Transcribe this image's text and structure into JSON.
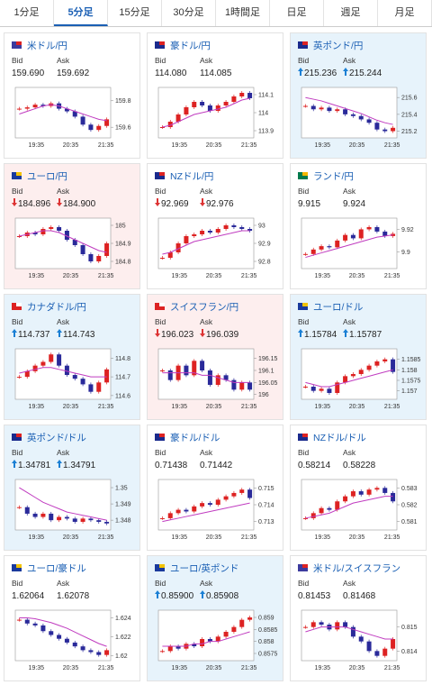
{
  "tabs": [
    "1分足",
    "5分足",
    "15分足",
    "30分足",
    "1時間足",
    "日足",
    "週足",
    "月足"
  ],
  "active_tab": 1,
  "labels": {
    "bid": "Bid",
    "ask": "Ask"
  },
  "time_ticks": [
    "19:35",
    "20:35",
    "21:35"
  ],
  "pairs": [
    {
      "name": "米ドル/円",
      "bid": "159.690",
      "ask": "159.692",
      "trend": null,
      "bg": "#ffffff",
      "flag": [
        "#3c3b9e",
        "#d22"
      ],
      "ylim": [
        159.52,
        159.9
      ],
      "yticks": [
        159.8,
        159.6
      ],
      "close": [
        159.74,
        159.75,
        159.77,
        159.76,
        159.78,
        159.74,
        159.72,
        159.68,
        159.62,
        159.58,
        159.61,
        159.66
      ],
      "ma": [
        159.7,
        159.72,
        159.74,
        159.76,
        159.77,
        159.76,
        159.74,
        159.72,
        159.7,
        159.68,
        159.66,
        159.65
      ]
    },
    {
      "name": "豪ドル/円",
      "bid": "114.080",
      "ask": "114.085",
      "trend": null,
      "bg": "#ffffff",
      "flag": [
        "#1a2a8c",
        "#d22"
      ],
      "ylim": [
        113.86,
        114.14
      ],
      "yticks": [
        114.1,
        114,
        113.9
      ],
      "close": [
        113.92,
        113.95,
        113.99,
        114.03,
        114.06,
        114.04,
        114.01,
        114.04,
        114.06,
        114.09,
        114.11,
        114.08
      ],
      "ma": [
        113.92,
        113.93,
        113.95,
        113.97,
        113.99,
        114.0,
        114.01,
        114.02,
        114.03,
        114.05,
        114.07,
        114.08
      ]
    },
    {
      "name": "英ポンド/円",
      "bid": "215.236",
      "ask": "215.244",
      "trend": "up",
      "bg": "#e7f3fb",
      "flag": [
        "#1a2a8c",
        "#d22"
      ],
      "ylim": [
        215.12,
        215.72
      ],
      "yticks": [
        215.6,
        215.4,
        215.2
      ],
      "close": [
        215.5,
        215.46,
        215.48,
        215.44,
        215.46,
        215.4,
        215.38,
        215.34,
        215.3,
        215.22,
        215.2,
        215.24
      ],
      "ma": [
        215.6,
        215.58,
        215.56,
        215.53,
        215.5,
        215.47,
        215.44,
        215.41,
        215.37,
        215.33,
        215.3,
        215.28
      ]
    },
    {
      "name": "ユーロ/円",
      "bid": "184.896",
      "ask": "184.900",
      "trend": "down",
      "bg": "#fdeeee",
      "flag": [
        "#1a3a9c",
        "#f2c200"
      ],
      "ylim": [
        184.76,
        185.04
      ],
      "yticks": [
        185,
        184.9,
        184.8
      ],
      "close": [
        184.94,
        184.96,
        184.95,
        184.98,
        184.99,
        184.97,
        184.92,
        184.89,
        184.84,
        184.8,
        184.83,
        184.9
      ],
      "ma": [
        184.94,
        184.95,
        184.96,
        184.97,
        184.97,
        184.96,
        184.94,
        184.92,
        184.9,
        184.88,
        184.86,
        184.85
      ]
    },
    {
      "name": "NZドル/円",
      "bid": "92.969",
      "ask": "92.976",
      "trend": "down",
      "bg": "#ffffff",
      "flag": [
        "#1a2a8c",
        "#d22"
      ],
      "ylim": [
        92.76,
        93.04
      ],
      "yticks": [
        93,
        92.9,
        92.8
      ],
      "close": [
        92.82,
        92.85,
        92.9,
        92.94,
        92.95,
        92.97,
        92.96,
        92.98,
        93.0,
        92.99,
        92.98,
        92.97
      ],
      "ma": [
        92.84,
        92.85,
        92.87,
        92.89,
        92.91,
        92.92,
        92.93,
        92.94,
        92.95,
        92.96,
        92.97,
        92.97
      ]
    },
    {
      "name": "ランド/円",
      "bid": "9.915",
      "ask": "9.924",
      "trend": null,
      "bg": "#ffffff",
      "flag": [
        "#007a4d",
        "#f2b600"
      ],
      "ylim": [
        9.885,
        9.93
      ],
      "yticks": [
        9.92,
        9.9
      ],
      "close": [
        9.898,
        9.902,
        9.905,
        9.904,
        9.91,
        9.915,
        9.912,
        9.92,
        9.922,
        9.918,
        9.914,
        9.916
      ],
      "ma": [
        9.895,
        9.897,
        9.899,
        9.901,
        9.903,
        9.905,
        9.907,
        9.909,
        9.911,
        9.913,
        9.914,
        9.915
      ]
    },
    {
      "name": "カナダドル/円",
      "bid": "114.737",
      "ask": "114.743",
      "trend": "up",
      "bg": "#e7f3fb",
      "flag": [
        "#d22",
        "#ffffff"
      ],
      "ylim": [
        114.58,
        114.85
      ],
      "yticks": [
        114.8,
        114.7,
        114.6
      ],
      "close": [
        114.7,
        114.73,
        114.76,
        114.78,
        114.82,
        114.76,
        114.71,
        114.69,
        114.66,
        114.62,
        114.67,
        114.74
      ],
      "ma": [
        114.72,
        114.73,
        114.74,
        114.75,
        114.75,
        114.74,
        114.73,
        114.72,
        114.71,
        114.7,
        114.7,
        114.7
      ]
    },
    {
      "name": "スイスフラン/円",
      "bid": "196.023",
      "ask": "196.039",
      "trend": "down",
      "bg": "#fdeeee",
      "flag": [
        "#d22",
        "#ffffff"
      ],
      "ylim": [
        195.98,
        196.19
      ],
      "yticks": [
        196.15,
        196.1,
        196.05,
        196
      ],
      "close": [
        196.1,
        196.06,
        196.12,
        196.08,
        196.14,
        196.1,
        196.04,
        196.08,
        196.06,
        196.02,
        196.05,
        196.02
      ],
      "ma": [
        196.09,
        196.09,
        196.09,
        196.09,
        196.09,
        196.08,
        196.08,
        196.07,
        196.06,
        196.05,
        196.05,
        196.05
      ]
    },
    {
      "name": "ユーロ/ドル",
      "bid": "1.15784",
      "ask": "1.15787",
      "trend": "up",
      "bg": "#e7f3fb",
      "flag": [
        "#1a3a9c",
        "#f2c200"
      ],
      "ylim": [
        1.1566,
        1.159
      ],
      "yticks": [
        1.1585,
        1.158,
        1.1575,
        1.157
      ],
      "close": [
        1.1572,
        1.157,
        1.1571,
        1.1569,
        1.1574,
        1.1577,
        1.1578,
        1.158,
        1.1582,
        1.1584,
        1.1585,
        1.1579
      ],
      "ma": [
        1.1574,
        1.1573,
        1.1572,
        1.1572,
        1.1573,
        1.1574,
        1.1575,
        1.1576,
        1.1577,
        1.1578,
        1.1579,
        1.158
      ]
    },
    {
      "name": "英ポンド/ドル",
      "bid": "1.34781",
      "ask": "1.34791",
      "trend": "up",
      "bg": "#e7f3fb",
      "flag": [
        "#1a2a8c",
        "#d22"
      ],
      "ylim": [
        1.3474,
        1.3505
      ],
      "yticks": [
        1.35,
        1.349,
        1.348
      ],
      "close": [
        1.3488,
        1.3484,
        1.3482,
        1.3484,
        1.348,
        1.3482,
        1.3481,
        1.3479,
        1.3481,
        1.348,
        1.3479,
        1.3478
      ],
      "ma": [
        1.35,
        1.3497,
        1.3494,
        1.3491,
        1.3489,
        1.3487,
        1.3485,
        1.3484,
        1.3483,
        1.3482,
        1.3481,
        1.348
      ]
    },
    {
      "name": "豪ドル/ドル",
      "bid": "0.71438",
      "ask": "0.71442",
      "trend": null,
      "bg": "#ffffff",
      "flag": [
        "#1a2a8c",
        "#d22"
      ],
      "ylim": [
        0.7125,
        0.7155
      ],
      "yticks": [
        0.715,
        0.714,
        0.713
      ],
      "close": [
        0.7132,
        0.7135,
        0.7137,
        0.7136,
        0.7139,
        0.7141,
        0.714,
        0.7143,
        0.7145,
        0.7147,
        0.7149,
        0.7144
      ],
      "ma": [
        0.713,
        0.7131,
        0.7132,
        0.7133,
        0.7134,
        0.7135,
        0.7136,
        0.7137,
        0.7138,
        0.7139,
        0.714,
        0.7141
      ]
    },
    {
      "name": "NZドル/ドル",
      "bid": "0.58214",
      "ask": "0.58228",
      "trend": null,
      "bg": "#ffffff",
      "flag": [
        "#1a2a8c",
        "#d22"
      ],
      "ylim": [
        0.5805,
        0.5835
      ],
      "yticks": [
        0.583,
        0.582,
        0.581
      ],
      "close": [
        0.5812,
        0.5815,
        0.5818,
        0.5817,
        0.5822,
        0.5825,
        0.5828,
        0.5826,
        0.5829,
        0.583,
        0.5827,
        0.5822
      ],
      "ma": [
        0.5812,
        0.5813,
        0.5814,
        0.5815,
        0.5817,
        0.5819,
        0.5821,
        0.5822,
        0.5823,
        0.5824,
        0.5825,
        0.5825
      ]
    },
    {
      "name": "ユーロ/豪ドル",
      "bid": "1.62064",
      "ask": "1.62078",
      "trend": null,
      "bg": "#ffffff",
      "flag": [
        "#1a3a9c",
        "#f2c200"
      ],
      "ylim": [
        1.6195,
        1.6248
      ],
      "yticks": [
        1.624,
        1.622,
        1.62
      ],
      "close": [
        1.6238,
        1.6234,
        1.6232,
        1.6226,
        1.6222,
        1.6218,
        1.6214,
        1.621,
        1.6206,
        1.6204,
        1.6201,
        1.6206
      ],
      "ma": [
        1.624,
        1.624,
        1.6239,
        1.6237,
        1.6235,
        1.6232,
        1.6229,
        1.6225,
        1.6221,
        1.6217,
        1.6213,
        1.621
      ]
    },
    {
      "name": "ユーロ/英ポンド",
      "bid": "0.85900",
      "ask": "0.85908",
      "trend": "up",
      "bg": "#e7f3fb",
      "flag": [
        "#1a3a9c",
        "#f2c200"
      ],
      "ylim": [
        0.8572,
        0.8593
      ],
      "yticks": [
        0.859,
        0.8585,
        0.858,
        0.8575
      ],
      "close": [
        0.8576,
        0.8578,
        0.8577,
        0.8579,
        0.8578,
        0.8581,
        0.858,
        0.8582,
        0.8584,
        0.8586,
        0.8589,
        0.859
      ],
      "ma": [
        0.8578,
        0.8578,
        0.8578,
        0.8578,
        0.8579,
        0.8579,
        0.858,
        0.858,
        0.8581,
        0.8582,
        0.8583,
        0.8584
      ]
    },
    {
      "name": "米ドル/スイスフラン",
      "bid": "0.81453",
      "ask": "0.81468",
      "trend": null,
      "bg": "#ffffff",
      "flag": [
        "#3c3b9e",
        "#d22"
      ],
      "ylim": [
        0.8136,
        0.8157
      ],
      "yticks": [
        0.815,
        0.814
      ],
      "close": [
        0.815,
        0.8152,
        0.8151,
        0.8149,
        0.8152,
        0.815,
        0.8146,
        0.8144,
        0.814,
        0.8138,
        0.8141,
        0.8145
      ],
      "ma": [
        0.8148,
        0.8149,
        0.815,
        0.815,
        0.815,
        0.815,
        0.8149,
        0.8148,
        0.8147,
        0.8146,
        0.8145,
        0.8145
      ]
    }
  ]
}
